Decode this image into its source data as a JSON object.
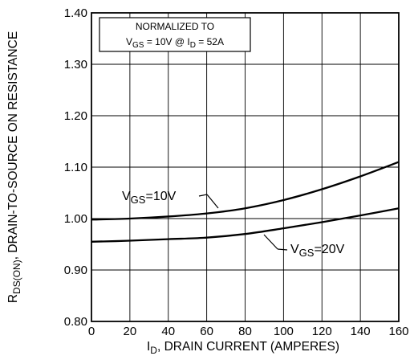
{
  "chart_data": {
    "type": "line",
    "xlabel": {
      "main": "I",
      "sub": "D",
      "rest": ", DRAIN CURRENT (AMPERES)"
    },
    "ylabel": {
      "main": "R",
      "sub": "DS(ON)",
      "rest": ", DRAIN-TO-SOURCE ON RESISTANCE"
    },
    "xlim": [
      0,
      160
    ],
    "ylim": [
      0.8,
      1.4
    ],
    "xticks": [
      0,
      20,
      40,
      60,
      80,
      100,
      120,
      140,
      160
    ],
    "yticks": [
      0.8,
      0.9,
      1.0,
      1.1,
      1.2,
      1.3,
      1.4
    ],
    "ytick_labels": [
      "0.80",
      "0.90",
      "1.00",
      "1.10",
      "1.20",
      "1.30",
      "1.40"
    ],
    "grid": true,
    "annotation": {
      "line1": "NORMALIZED TO",
      "line2_prefix": "V",
      "line2_sub1": "GS",
      "line2_mid": " = 10V  @  I",
      "line2_sub2": "D",
      "line2_suffix": " = 52A"
    },
    "series": [
      {
        "label_main": "V",
        "label_sub": "GS",
        "label_rest": "=10V",
        "x": [
          0,
          20,
          40,
          60,
          80,
          100,
          120,
          140,
          160
        ],
        "y": [
          0.998,
          1.0,
          1.004,
          1.01,
          1.02,
          1.036,
          1.057,
          1.082,
          1.11
        ]
      },
      {
        "label_main": "V",
        "label_sub": "GS",
        "label_rest": "=20V",
        "x": [
          0,
          20,
          40,
          60,
          80,
          100,
          120,
          140,
          160
        ],
        "y": [
          0.955,
          0.957,
          0.96,
          0.963,
          0.97,
          0.981,
          0.993,
          1.006,
          1.02
        ]
      }
    ]
  }
}
